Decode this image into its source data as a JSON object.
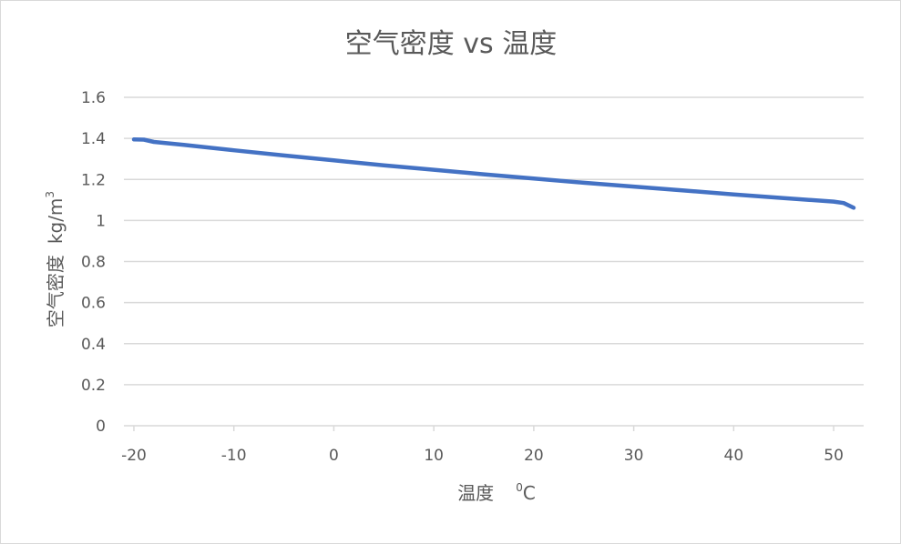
{
  "chart_data": {
    "type": "line",
    "title": "空气密度 vs 温度",
    "xlabel": "温度",
    "xlabel_unit_prefix": "0",
    "xlabel_unit": "C",
    "ylabel": "空气密度",
    "ylabel_unit": "kg/m",
    "ylabel_unit_exp": "3",
    "xlim": [
      -21,
      53
    ],
    "ylim": [
      0,
      1.6
    ],
    "x_ticks": [
      "-20",
      "-10",
      "0",
      "10",
      "20",
      "30",
      "40",
      "50"
    ],
    "y_ticks": [
      "0",
      "0.2",
      "0.4",
      "0.6",
      "0.8",
      "1",
      "1.2",
      "1.4",
      "1.6"
    ],
    "grid": true,
    "legend": "none",
    "series_color": "#4472c4",
    "x": [
      -20,
      -19,
      -18,
      -15,
      -10,
      -5,
      0,
      5,
      10,
      15,
      20,
      25,
      30,
      35,
      40,
      45,
      50,
      51,
      52
    ],
    "y": [
      1.395,
      1.394,
      1.383,
      1.368,
      1.342,
      1.317,
      1.293,
      1.269,
      1.247,
      1.225,
      1.204,
      1.184,
      1.165,
      1.146,
      1.127,
      1.109,
      1.092,
      1.085,
      1.062
    ]
  }
}
